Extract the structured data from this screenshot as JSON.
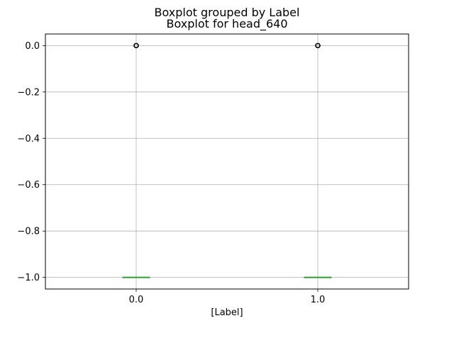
{
  "chart_data": {
    "type": "boxplot",
    "suptitle": "Boxplot grouped by Label",
    "title": "Boxplot for head_640",
    "xlabel": "[Label]",
    "ylabel": "",
    "categories": [
      "0.0",
      "1.0"
    ],
    "boxes": [
      {
        "category": "0.0",
        "whisker_low": -1.0,
        "q1": -1.0,
        "median": -1.0,
        "q3": -1.0,
        "whisker_high": -1.0,
        "outliers": [
          0.0
        ]
      },
      {
        "category": "1.0",
        "whisker_low": -1.0,
        "q1": -1.0,
        "median": -1.0,
        "q3": -1.0,
        "whisker_high": -1.0,
        "outliers": [
          0.0
        ]
      }
    ],
    "ylim": [
      -1.05,
      0.05
    ],
    "yticks": [
      0.0,
      -0.2,
      -0.4,
      -0.6,
      -0.8,
      -1.0
    ],
    "ytick_labels": [
      "0.0",
      "−0.2",
      "−0.4",
      "−0.6",
      "−0.8",
      "−1.0"
    ],
    "grid": true,
    "colors": {
      "box": "#1f77b4",
      "median": "#2ca02c",
      "grid": "#b0b0b0",
      "outlier": "#000000"
    }
  }
}
